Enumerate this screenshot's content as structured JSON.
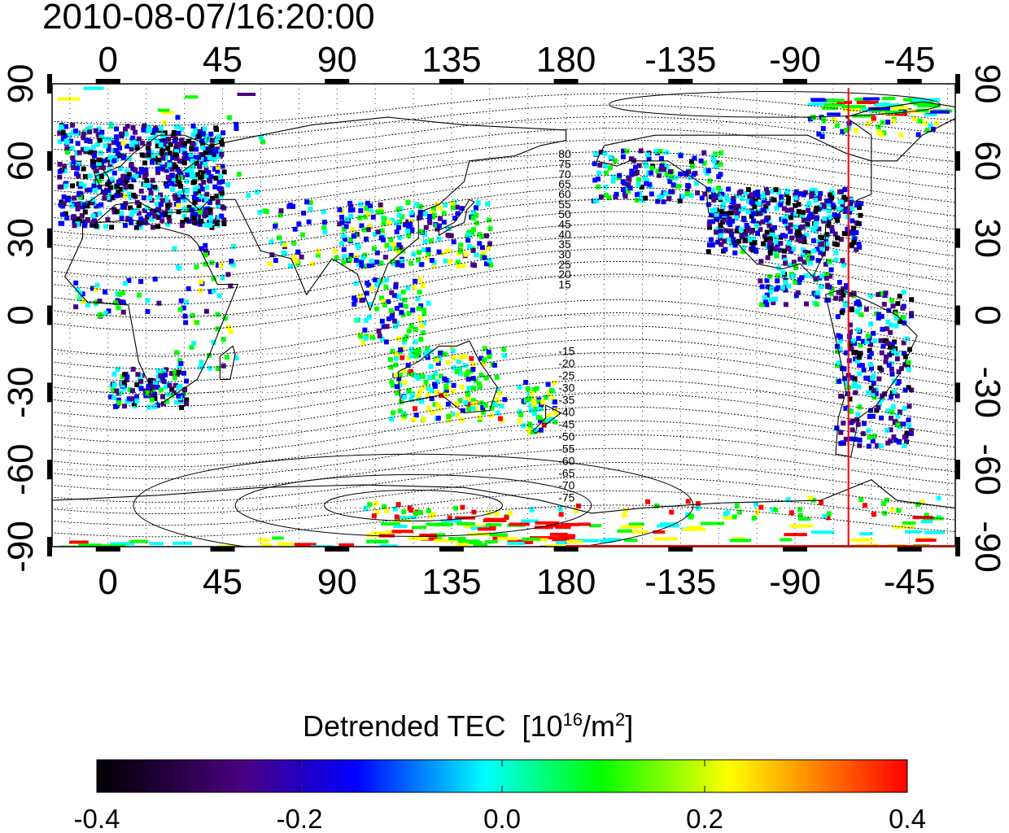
{
  "title": "2010-08-07/16:20:00",
  "map": {
    "lon_ticks": [
      "0",
      "45",
      "90",
      "135",
      "180",
      "-135",
      "-90",
      "-45"
    ],
    "lon_values": [
      0,
      45,
      90,
      135,
      180,
      225,
      270,
      315
    ],
    "lat_ticks": [
      "90",
      "60",
      "30",
      "0",
      "-30",
      "-60",
      "-90"
    ],
    "lat_values": [
      90,
      60,
      30,
      0,
      -30,
      -60,
      -90
    ],
    "lon_range": [
      -22,
      333
    ],
    "lat_range": [
      -90,
      90
    ],
    "contour_labels_north": [
      "80",
      "75",
      "70",
      "65",
      "60",
      "55",
      "50",
      "45",
      "40",
      "35",
      "30",
      "25",
      "20",
      "15"
    ],
    "contour_labels_south": [
      "-15",
      "-20",
      "-25",
      "-30",
      "-35",
      "-40",
      "-45",
      "-50",
      "-55",
      "-60",
      "-65",
      "-70",
      "-75"
    ],
    "terminator_lon": 291,
    "colors": {
      "terminator": "#ff0000",
      "contour": "#000000"
    }
  },
  "colorbar": {
    "title_main": "Detrended TEC",
    "title_unit_pre": "[10",
    "title_unit_exp1": "16",
    "title_unit_mid": "/m",
    "title_unit_exp2": "2",
    "title_unit_post": "]",
    "ticks": [
      "-0.4",
      "-0.2",
      "0.0",
      "0.2",
      "0.4"
    ],
    "tick_values": [
      -0.4,
      -0.2,
      0.0,
      0.2,
      0.4
    ],
    "range": [
      -0.4,
      0.4
    ],
    "colormap": [
      "#000000",
      "#4a0080",
      "#0000ff",
      "#00ffff",
      "#00ff00",
      "#ffff00",
      "#ff0000"
    ]
  }
}
